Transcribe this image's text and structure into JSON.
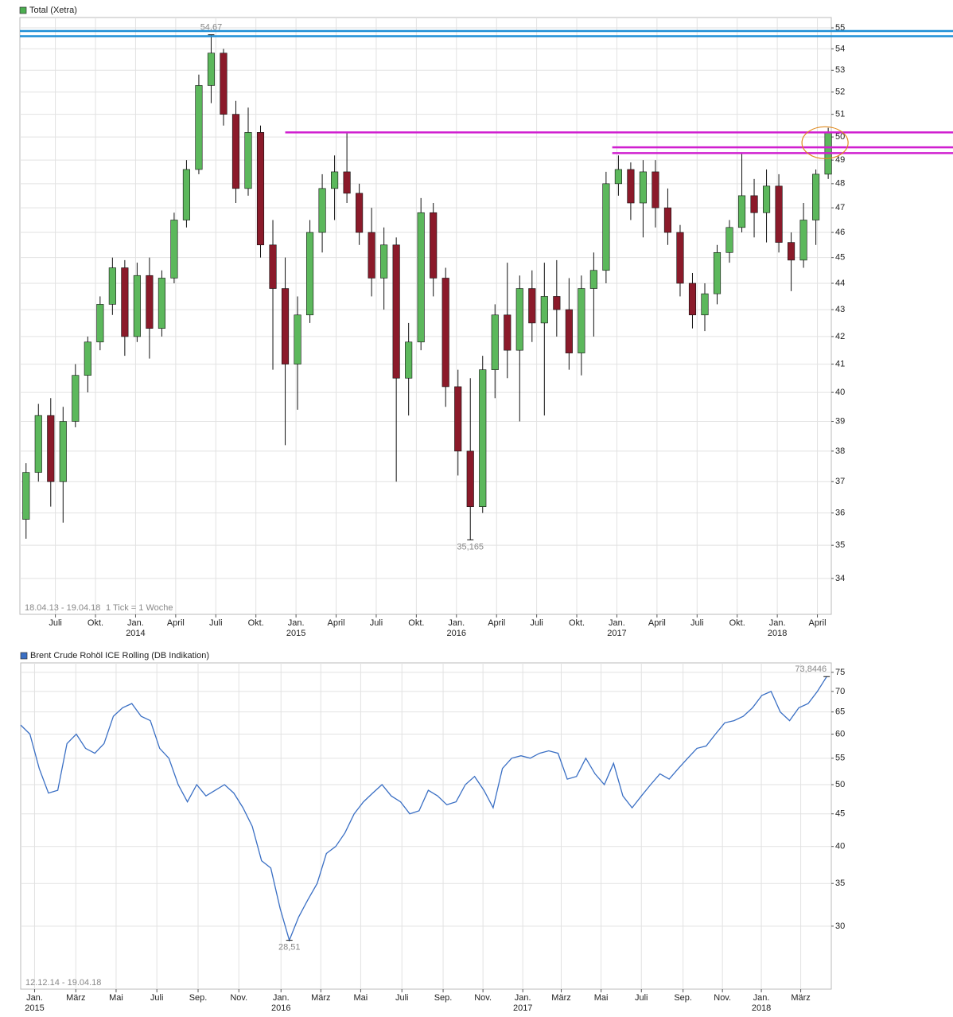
{
  "chart_data": [
    {
      "type": "candlestick",
      "title": "Total (Xetra)",
      "legend_color": "#4caf50",
      "date_range": "18.04.13 - 19.04.18",
      "tick_note": "1 Tick = 1 Woche",
      "log_scale": true,
      "grid": true,
      "up_color": "#5cb85c",
      "down_color": "#8b1a2a",
      "xlim": [
        0,
        263
      ],
      "ylim": [
        32.95,
        55.5
      ],
      "yticks": [
        34,
        35,
        36,
        37,
        38,
        39,
        40,
        41,
        42,
        43,
        44,
        45,
        46,
        47,
        48,
        49,
        50,
        51,
        52,
        53,
        54,
        55
      ],
      "xticks": [
        {
          "value": 11.5,
          "label": "Juli"
        },
        {
          "value": 24.5,
          "label": "Okt."
        },
        {
          "value": 37.5,
          "label": "Jan."
        },
        {
          "value": 50.5,
          "label": "April"
        },
        {
          "value": 63.5,
          "label": "Juli"
        },
        {
          "value": 76.5,
          "label": "Okt."
        },
        {
          "value": 89.5,
          "label": "Jan."
        },
        {
          "value": 102.5,
          "label": "April"
        },
        {
          "value": 115.5,
          "label": "Juli"
        },
        {
          "value": 128.5,
          "label": "Okt."
        },
        {
          "value": 141.5,
          "label": "Jan."
        },
        {
          "value": 154.5,
          "label": "April"
        },
        {
          "value": 167.5,
          "label": "Juli"
        },
        {
          "value": 180.5,
          "label": "Okt."
        },
        {
          "value": 193.5,
          "label": "Jan."
        },
        {
          "value": 206.5,
          "label": "April"
        },
        {
          "value": 219.5,
          "label": "Juli"
        },
        {
          "value": 232.5,
          "label": "Okt."
        },
        {
          "value": 245.5,
          "label": "Jan."
        },
        {
          "value": 258.5,
          "label": "April"
        }
      ],
      "year_labels": [
        {
          "value": 37.5,
          "label": "2014"
        },
        {
          "value": 89.5,
          "label": "2015"
        },
        {
          "value": 141.5,
          "label": "2016"
        },
        {
          "value": 193.5,
          "label": "2017"
        },
        {
          "value": 245.5,
          "label": "2018"
        }
      ],
      "x": [
        2,
        6,
        10,
        14,
        18,
        22,
        26,
        30,
        34,
        38,
        42,
        46,
        50,
        54,
        58,
        62,
        66,
        70,
        74,
        78,
        82,
        86,
        90,
        94,
        98,
        102,
        106,
        110,
        114,
        118,
        122,
        126,
        130,
        134,
        138,
        142,
        146,
        150,
        154,
        158,
        162,
        166,
        170,
        174,
        178,
        182,
        186,
        190,
        194,
        198,
        202,
        206,
        210,
        214,
        218,
        222,
        226,
        230,
        234,
        238,
        242,
        246,
        250,
        254,
        258,
        262
      ],
      "open": [
        35.8,
        37.3,
        39.2,
        37.0,
        39.0,
        40.6,
        41.8,
        43.2,
        44.6,
        42.0,
        44.3,
        42.3,
        44.2,
        46.5,
        48.6,
        52.3,
        53.8,
        51.0,
        47.8,
        50.2,
        45.5,
        43.8,
        41.0,
        42.8,
        46.0,
        47.8,
        48.5,
        47.6,
        46.0,
        44.2,
        45.5,
        40.5,
        41.8,
        46.8,
        44.2,
        40.2,
        38.0,
        36.2,
        40.8,
        42.8,
        41.5,
        43.8,
        42.5,
        43.5,
        43.0,
        41.4,
        43.8,
        44.5,
        48.0,
        48.6,
        47.2,
        48.5,
        47.0,
        46.0,
        44.0,
        42.8,
        43.6,
        45.2,
        46.2,
        47.5,
        46.8,
        47.9,
        45.6,
        44.9,
        46.5,
        48.4
      ],
      "high": [
        37.6,
        39.6,
        39.8,
        39.5,
        41.0,
        42.0,
        43.5,
        45.0,
        44.9,
        44.8,
        45.0,
        44.5,
        46.8,
        49.0,
        52.8,
        54.67,
        54.0,
        51.6,
        51.3,
        50.5,
        46.5,
        45.0,
        43.5,
        46.5,
        48.4,
        49.2,
        50.2,
        48.0,
        47.0,
        46.2,
        45.8,
        42.5,
        47.4,
        47.2,
        44.6,
        40.8,
        40.5,
        41.3,
        43.2,
        44.8,
        44.3,
        44.5,
        44.8,
        44.9,
        44.2,
        44.3,
        45.2,
        48.5,
        49.2,
        48.9,
        49.0,
        49.0,
        47.8,
        46.3,
        44.4,
        44.0,
        45.5,
        46.5,
        49.3,
        48.2,
        48.6,
        48.4,
        46.0,
        47.2,
        48.6,
        50.4
      ],
      "low": [
        35.2,
        37.0,
        36.2,
        35.7,
        38.8,
        40.0,
        41.5,
        42.8,
        41.3,
        41.8,
        41.2,
        42.0,
        44.0,
        46.2,
        48.4,
        51.5,
        50.5,
        47.2,
        47.5,
        45.0,
        40.8,
        38.2,
        39.4,
        42.5,
        45.2,
        46.5,
        47.2,
        45.5,
        43.5,
        43.0,
        37.0,
        39.2,
        41.5,
        43.5,
        39.5,
        37.2,
        35.165,
        36.0,
        39.8,
        40.5,
        39.0,
        41.8,
        39.2,
        42.0,
        40.8,
        40.6,
        42.0,
        44.0,
        47.5,
        46.5,
        45.8,
        46.2,
        45.5,
        43.5,
        42.3,
        42.2,
        43.2,
        44.8,
        46.0,
        45.8,
        45.6,
        45.2,
        43.7,
        44.6,
        45.5,
        48.2
      ],
      "close": [
        37.3,
        39.2,
        37.0,
        39.0,
        40.6,
        41.8,
        43.2,
        44.6,
        42.0,
        44.3,
        42.3,
        44.2,
        46.5,
        48.6,
        52.3,
        53.8,
        51.0,
        47.8,
        50.2,
        45.5,
        43.8,
        41.0,
        42.8,
        46.0,
        47.8,
        48.5,
        47.6,
        46.0,
        44.2,
        45.5,
        40.5,
        41.8,
        46.8,
        44.2,
        40.2,
        38.0,
        36.2,
        40.8,
        42.8,
        41.5,
        43.8,
        42.5,
        43.5,
        43.0,
        41.4,
        43.8,
        44.5,
        48.0,
        48.6,
        47.2,
        48.5,
        47.0,
        46.0,
        44.0,
        42.8,
        43.6,
        45.2,
        46.2,
        47.5,
        46.8,
        47.9,
        45.6,
        44.9,
        46.5,
        48.4,
        50.2
      ],
      "annotations": [
        {
          "x": 62,
          "y": 54.67,
          "label": "54,67",
          "position": "above"
        },
        {
          "x": 146,
          "y": 35.165,
          "label": "35,165",
          "position": "below"
        }
      ],
      "hlines": [
        {
          "value": 54.85,
          "color": "#1e8fd6",
          "from": 0
        },
        {
          "value": 54.6,
          "color": "#1e8fd6",
          "from": 0
        },
        {
          "value": 50.2,
          "color": "#d020d0",
          "from": 86
        },
        {
          "value": 49.55,
          "color": "#d020d0",
          "from": 192
        },
        {
          "value": 49.3,
          "color": "#d020d0",
          "from": 192
        }
      ],
      "highlight": {
        "x": 262,
        "y": 49.75,
        "color": "#e08a1e"
      }
    },
    {
      "type": "line",
      "title": "Brent Crude Rohöl ICE Rolling (DB Indikation)",
      "legend_color": "#3a6fc4",
      "date_range": "12.12.14 - 19.04.18",
      "color": "#3a6fc4",
      "log_scale": true,
      "grid": true,
      "xlim": [
        0,
        175
      ],
      "ylim": [
        23.9,
        77.6
      ],
      "yticks": [
        30,
        35,
        40,
        45,
        50,
        55,
        60,
        65,
        70,
        75
      ],
      "xticks": [
        {
          "value": 3,
          "label": "Jan."
        },
        {
          "value": 11.9,
          "label": "März"
        },
        {
          "value": 20.6,
          "label": "Mai"
        },
        {
          "value": 29.4,
          "label": "Juli"
        },
        {
          "value": 38.3,
          "label": "Sep."
        },
        {
          "value": 47.1,
          "label": "Nov."
        },
        {
          "value": 56.2,
          "label": "Jan."
        },
        {
          "value": 64.8,
          "label": "März"
        },
        {
          "value": 73.4,
          "label": "Mai"
        },
        {
          "value": 82.3,
          "label": "Juli"
        },
        {
          "value": 91.2,
          "label": "Sep."
        },
        {
          "value": 99.8,
          "label": "Nov."
        },
        {
          "value": 108.4,
          "label": "Jan."
        },
        {
          "value": 116.7,
          "label": "März"
        },
        {
          "value": 125.3,
          "label": "Mai"
        },
        {
          "value": 134,
          "label": "Juli"
        },
        {
          "value": 143,
          "label": "Sep."
        },
        {
          "value": 151.5,
          "label": "Nov."
        },
        {
          "value": 159.9,
          "label": "Jan."
        },
        {
          "value": 168.4,
          "label": "März"
        }
      ],
      "year_labels": [
        {
          "value": 3,
          "label": "2015"
        },
        {
          "value": 56.2,
          "label": "2016"
        },
        {
          "value": 108.4,
          "label": "2017"
        },
        {
          "value": 159.9,
          "label": "2018"
        }
      ],
      "x": [
        0,
        2,
        4,
        6,
        8,
        10,
        12,
        14,
        16,
        18,
        20,
        22,
        24,
        26,
        28,
        30,
        32,
        34,
        36,
        38,
        40,
        42,
        44,
        46,
        48,
        50,
        52,
        54,
        56,
        58,
        60,
        62,
        64,
        66,
        68,
        70,
        72,
        74,
        76,
        78,
        80,
        82,
        84,
        86,
        88,
        90,
        92,
        94,
        96,
        98,
        100,
        102,
        104,
        106,
        108,
        110,
        112,
        114,
        116,
        118,
        120,
        122,
        124,
        126,
        128,
        130,
        132,
        134,
        136,
        138,
        140,
        142,
        144,
        146,
        148,
        150,
        152,
        154,
        156,
        158,
        160,
        162,
        164,
        166,
        168,
        170,
        172,
        174
      ],
      "values": [
        62,
        60,
        53,
        48.5,
        49,
        58,
        60,
        57,
        56,
        58,
        64,
        66,
        67,
        64,
        63,
        57,
        55,
        50,
        47,
        50,
        48,
        49,
        50,
        48.5,
        46,
        43,
        38,
        37,
        32,
        28.51,
        31,
        33,
        35,
        39,
        40,
        42,
        45,
        47,
        48.5,
        50,
        48,
        47,
        45,
        45.5,
        49,
        48,
        46.5,
        47,
        50,
        51.5,
        49,
        46,
        53,
        55,
        55.5,
        55,
        56,
        56.5,
        56,
        51,
        51.5,
        55,
        52,
        50,
        54,
        48,
        46,
        48,
        50,
        52,
        51,
        53,
        55,
        57,
        57.5,
        60,
        62.5,
        63,
        64,
        66,
        69,
        70,
        65,
        63,
        66,
        67,
        70,
        73.8446
      ],
      "annotations": [
        {
          "x": 58,
          "y": 28.51,
          "label": "28,51",
          "position": "below"
        },
        {
          "x": 174,
          "y": 73.8446,
          "label": "73,8446",
          "position": "above"
        }
      ]
    }
  ]
}
